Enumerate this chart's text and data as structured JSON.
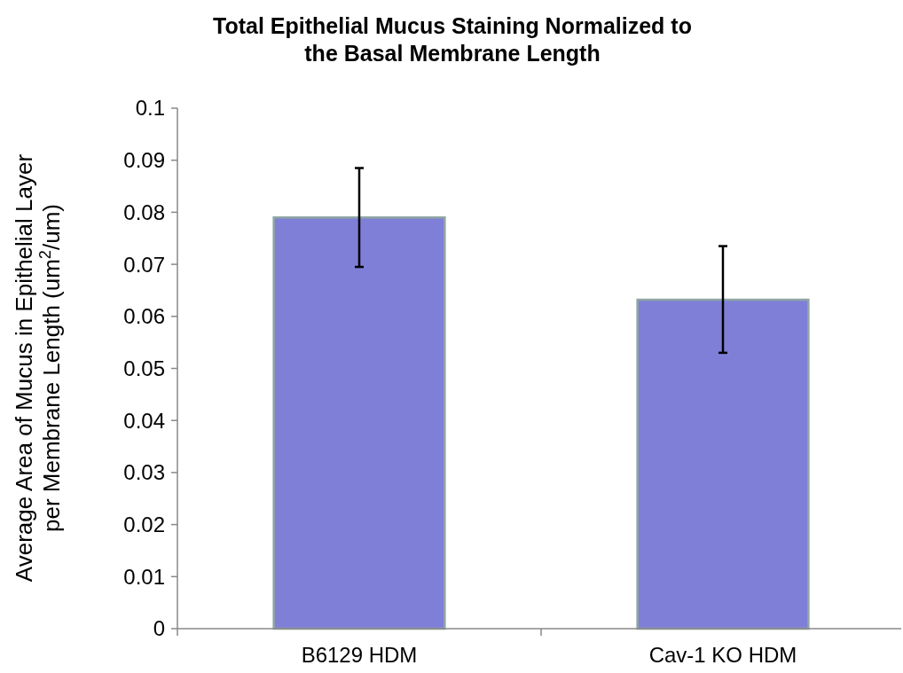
{
  "chart_data": {
    "type": "bar",
    "title": "Total Epithelial Mucus Staining Normalized to\nthe Basal Membrane Length",
    "ylabel": "Average Area of Mucus in Epithelial Layer\nper Membrane Length (um$^{2}$/um)",
    "categories": [
      "B6129 HDM",
      "Cav-1 KO HDM"
    ],
    "values": [
      0.079,
      0.0632
    ],
    "errors": [
      [
        0.0695,
        0.0885
      ],
      [
        0.053,
        0.0735
      ]
    ],
    "color": "#7f7fd8",
    "ylim": [
      0,
      0.1
    ],
    "yticks": [
      0,
      0.01,
      0.02,
      0.03,
      0.04,
      0.05,
      0.06,
      0.07,
      0.08,
      0.09,
      0.1
    ],
    "grid": false
  }
}
